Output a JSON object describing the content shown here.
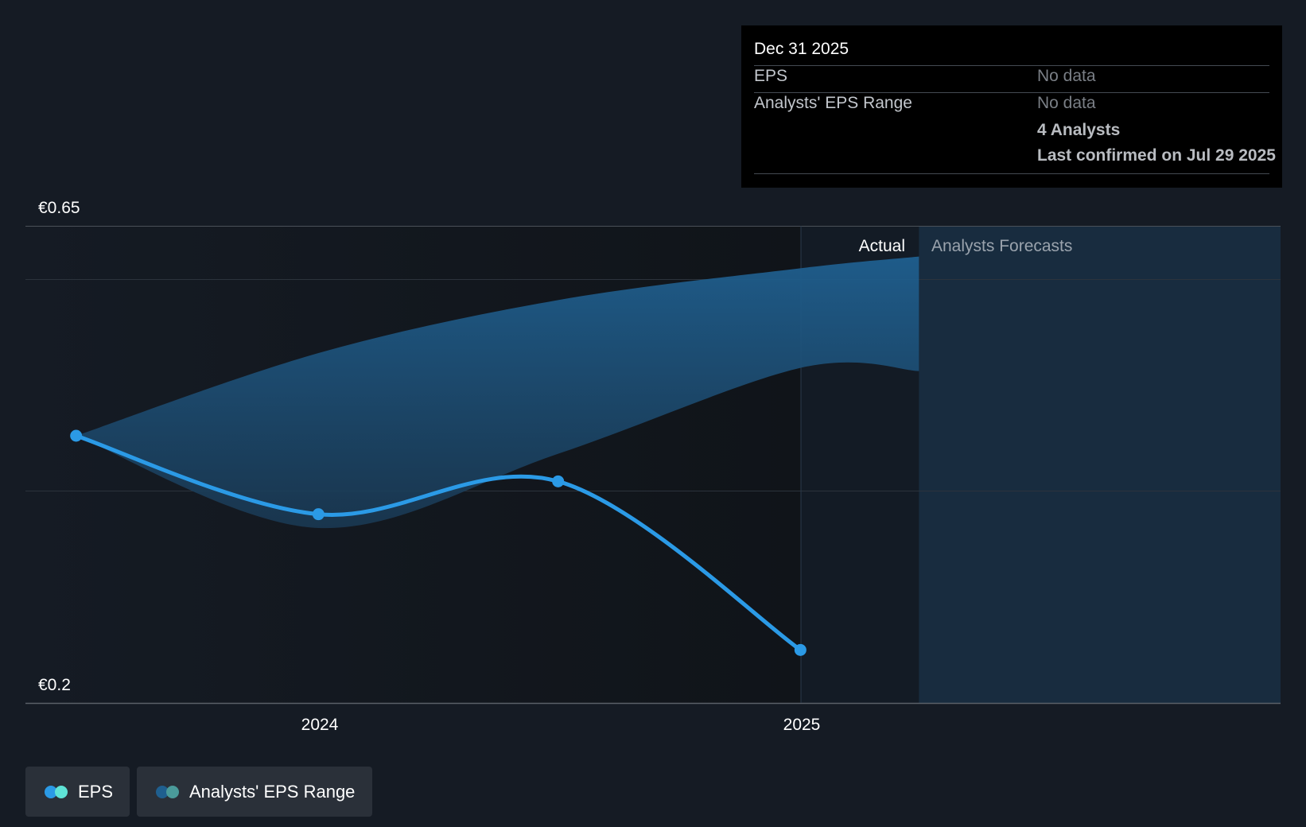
{
  "chart_data": {
    "type": "line",
    "y_axis": {
      "min_label": "€0.2",
      "max_label": "€0.65",
      "ylim": [
        0.2,
        0.65
      ]
    },
    "x_axis": {
      "tick_labels": [
        "2024",
        "2025"
      ]
    },
    "section_labels": {
      "actual": "Actual",
      "forecast": "Analysts Forecasts"
    },
    "series": [
      {
        "name": "EPS",
        "points": [
          {
            "x": "2023-06-30",
            "y": 0.452
          },
          {
            "x": "2023-12-31",
            "y": 0.378
          },
          {
            "x": "2024-06-30",
            "y": 0.409
          },
          {
            "x": "2024-12-31",
            "y": 0.25
          }
        ]
      },
      {
        "name": "Analysts' EPS Range",
        "upper": [
          {
            "x": "2023-06-30",
            "y": 0.452
          },
          {
            "x": "2023-12-31",
            "y": 0.53
          },
          {
            "x": "2024-06-30",
            "y": 0.58
          },
          {
            "x": "2024-12-31",
            "y": 0.61
          },
          {
            "x": "2025-03-31",
            "y": 0.621
          }
        ],
        "lower": [
          {
            "x": "2023-06-30",
            "y": 0.452
          },
          {
            "x": "2023-12-31",
            "y": 0.365
          },
          {
            "x": "2024-06-30",
            "y": 0.435
          },
          {
            "x": "2024-12-31",
            "y": 0.516
          },
          {
            "x": "2025-03-31",
            "y": 0.513
          }
        ]
      }
    ],
    "grid": true,
    "colors": {
      "eps_line": "#2b9ae6",
      "range_fill": "#1f5f8f",
      "forecast_region": "#182c3f"
    }
  },
  "tooltip": {
    "date": "Dec 31 2025",
    "rows": [
      {
        "label": "EPS",
        "value": "No data"
      },
      {
        "label": "Analysts' EPS Range",
        "value": "No data"
      }
    ],
    "analysts": "4 Analysts",
    "confirmed": "Last confirmed on Jul 29 2025"
  },
  "legend": [
    {
      "label": "EPS",
      "colors": [
        "#2b9ae6",
        "#5ee3d6"
      ]
    },
    {
      "label": "Analysts' EPS Range",
      "colors": [
        "#1f5f8f",
        "#4a9a9a"
      ]
    }
  ]
}
